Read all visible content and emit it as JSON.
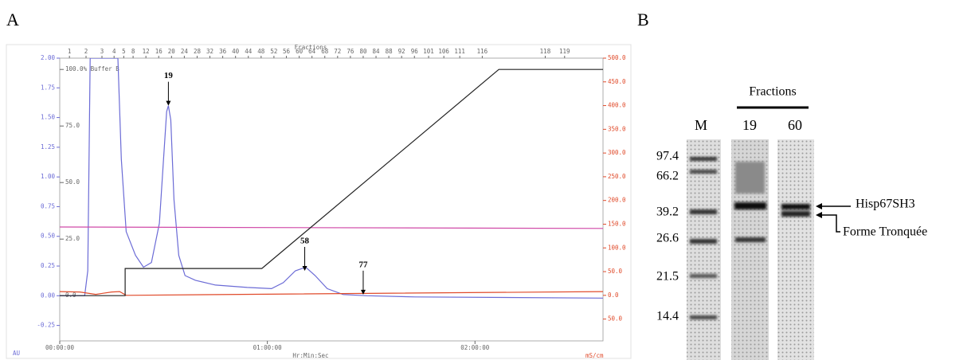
{
  "panels": [
    "A",
    "B"
  ],
  "chart_data": {
    "type": "line",
    "title": "Fractions",
    "xlabel": "Hr:Min:Sec",
    "ylabel": "AU",
    "y2label": "mS/cm",
    "xlim": [
      0,
      157
    ],
    "ylim": [
      -0.38,
      2.0
    ],
    "y2lim": [
      -96,
      500
    ],
    "y3lim": [
      -20,
      105
    ],
    "xticks": [
      {
        "value": 0,
        "label": "00:00:00"
      },
      {
        "value": 60,
        "label": "01:00:00"
      },
      {
        "value": 120,
        "label": "02:00:00"
      }
    ],
    "yticks": [
      {
        "value": 2.0,
        "label": "2.00"
      },
      {
        "value": 1.75,
        "label": "1.75"
      },
      {
        "value": 1.5,
        "label": "1.50"
      },
      {
        "value": 1.25,
        "label": "1.25"
      },
      {
        "value": 1.0,
        "label": "1.00"
      },
      {
        "value": 0.75,
        "label": "0.75"
      },
      {
        "value": 0.5,
        "label": "0.50"
      },
      {
        "value": 0.25,
        "label": "0.25"
      },
      {
        "value": 0,
        "label": "0.00"
      },
      {
        "value": -0.25,
        "label": "-0.25"
      }
    ],
    "y2ticks": [
      {
        "value": 500,
        "label": "500.0"
      },
      {
        "value": 450,
        "label": "450.0"
      },
      {
        "value": 400,
        "label": "400.0"
      },
      {
        "value": 350,
        "label": "350.0"
      },
      {
        "value": 300,
        "label": "300.0"
      },
      {
        "value": 250,
        "label": "250.0"
      },
      {
        "value": 200,
        "label": "200.0"
      },
      {
        "value": 150,
        "label": "150.0"
      },
      {
        "value": 100,
        "label": "100.0"
      },
      {
        "value": 50,
        "label": "50.0"
      },
      {
        "value": 0,
        "label": "0.0"
      },
      {
        "value": -50,
        "label": "50.0"
      }
    ],
    "y3ticks": [
      {
        "value": 100,
        "label": "100.0% Buffer B"
      },
      {
        "value": 75,
        "label": "75.0"
      },
      {
        "value": 50,
        "label": "50.0"
      },
      {
        "value": 25,
        "label": "25.0"
      },
      {
        "value": 0,
        "label": "0.0"
      }
    ],
    "fractions": {
      "labels": [
        "1",
        "2",
        "3",
        "4",
        "5",
        "8",
        "12",
        "16",
        "20",
        "24",
        "28",
        "32",
        "36",
        "40",
        "44",
        "48",
        "52",
        "56",
        "60",
        "64",
        "68",
        "72",
        "76",
        "80",
        "84",
        "88",
        "92",
        "96",
        "101",
        "106",
        "111",
        "116",
        "118",
        "119"
      ],
      "x": [
        2.8,
        7.6,
        12.2,
        15.7,
        18.5,
        21.2,
        24.9,
        28.6,
        32.3,
        36.0,
        39.7,
        43.4,
        47.1,
        50.8,
        54.5,
        58.2,
        61.9,
        65.5,
        69.2,
        72.9,
        76.6,
        80.3,
        84.0,
        87.7,
        91.4,
        95.1,
        98.8,
        102.5,
        106.6,
        111.0,
        115.6,
        122.1,
        140.3,
        145.9
      ]
    },
    "series": [
      {
        "color": "#6b6bd6",
        "x": [
          0,
          7.2,
          8.1,
          8.8,
          16.8,
          17.8,
          19.2,
          21.9,
          24.2,
          26.5,
          28.8,
          30.0,
          30.9,
          31.4,
          32.1,
          33.0,
          34.4,
          36.2,
          39.2,
          45.0,
          54.2,
          61.2,
          64.6,
          68.1,
          71.1,
          73.8,
          77.3,
          81.9,
          88.8,
          102.7,
          157
        ],
        "values": [
          0,
          0.0,
          0.21,
          2.0,
          2.0,
          1.15,
          0.54,
          0.34,
          0.24,
          0.28,
          0.61,
          1.15,
          1.55,
          1.6,
          1.48,
          0.81,
          0.34,
          0.17,
          0.13,
          0.09,
          0.07,
          0.06,
          0.11,
          0.21,
          0.24,
          0.17,
          0.06,
          0.01,
          0,
          -0.01,
          -0.02
        ]
      },
      {
        "color": "#e04a2a",
        "axis": "y2",
        "x": [
          0,
          5.8,
          10.4,
          15.0,
          17.3,
          19.2,
          52.4,
          157
        ],
        "values": [
          8,
          7,
          2,
          7,
          8,
          0,
          2,
          8
        ]
      },
      {
        "color": "#d04aa8",
        "axis": "y2",
        "x": [
          0,
          157
        ],
        "values": [
          144,
          141
        ]
      },
      {
        "color": "#222222",
        "axis": "y3",
        "x": [
          0,
          18.9,
          18.9,
          58.4,
          126.9,
          157
        ],
        "values": [
          0,
          0,
          12,
          12,
          100,
          100
        ]
      }
    ],
    "annotations": [
      {
        "text": "19",
        "x": 31.4,
        "y": 1.6
      },
      {
        "text": "58",
        "x": 70.8,
        "y": 0.21
      },
      {
        "text": "77",
        "x": 87.7,
        "y": 0.01
      }
    ]
  },
  "gel": {
    "title": "Fractions",
    "lanes": [
      "M",
      "19",
      "60"
    ],
    "markers": [
      "97.4",
      "66.2",
      "39.2",
      "26.6",
      "21.5",
      "14.4"
    ],
    "labels": [
      "Hisp67SH3",
      "Forme Tronquée"
    ]
  }
}
